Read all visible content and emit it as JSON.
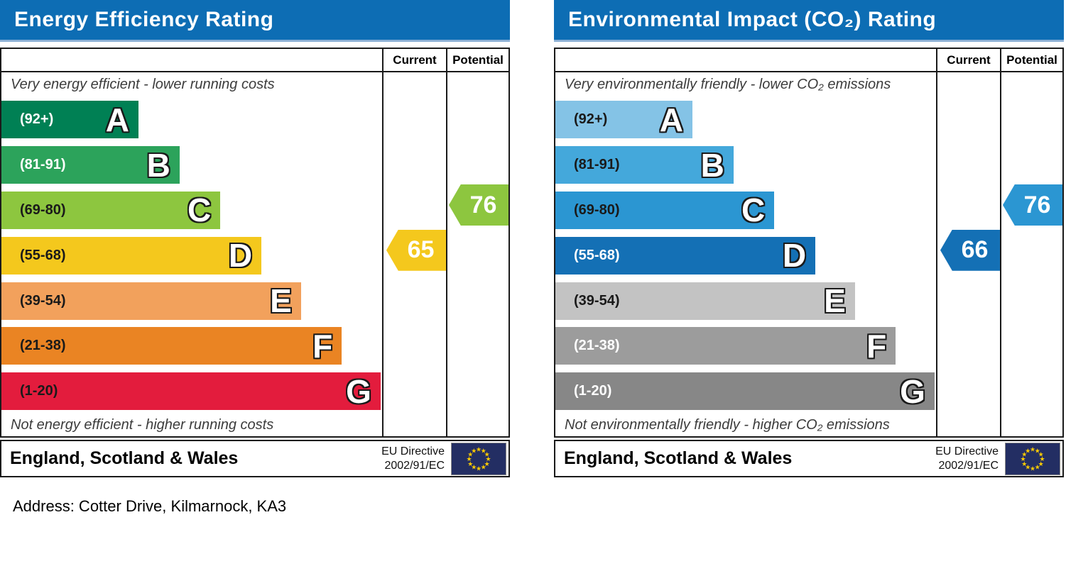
{
  "address": "Address: Cotter Drive, Kilmarnock, KA3",
  "icons": {
    "eu_flag": "eu-flag-icon: navy rectangle with circle of 12 yellow stars"
  },
  "colors": {
    "header_blue": "#0d6db4",
    "flag_navy": "#232e63",
    "flag_star_yellow": "#ffcc00"
  },
  "chart_data": [
    {
      "type": "bar",
      "title": "Energy Efficiency Rating",
      "columns": {
        "current": "Current",
        "potential": "Potential"
      },
      "top_caption": "Very energy efficient - lower running costs",
      "bottom_caption": "Not energy efficient - higher running costs",
      "bands": [
        {
          "letter": "A",
          "range": "(92+)",
          "color": "#008054",
          "width_pct": 36.0,
          "label_color": "#ffffff"
        },
        {
          "letter": "B",
          "range": "(81-91)",
          "color": "#2ca35b",
          "width_pct": 46.8,
          "label_color": "#ffffff"
        },
        {
          "letter": "C",
          "range": "(69-80)",
          "color": "#8dc63f",
          "width_pct": 57.5,
          "label_color": "#1a1a1a"
        },
        {
          "letter": "D",
          "range": "(55-68)",
          "color": "#f4c81d",
          "width_pct": 68.3,
          "label_color": "#1a1a1a"
        },
        {
          "letter": "E",
          "range": "(39-54)",
          "color": "#f2a15c",
          "width_pct": 78.7,
          "label_color": "#1a1a1a"
        },
        {
          "letter": "F",
          "range": "(21-38)",
          "color": "#ea8423",
          "width_pct": 89.4,
          "label_color": "#1a1a1a"
        },
        {
          "letter": "G",
          "range": "(1-20)",
          "color": "#e31c3d",
          "width_pct": 99.6,
          "label_color": "#1a1a1a"
        }
      ],
      "current": {
        "value": 65,
        "band": "D",
        "band_index": 3,
        "color": "#f4c81d"
      },
      "potential": {
        "value": 76,
        "band": "C",
        "band_index": 2,
        "color": "#8dc63f"
      },
      "footer_region": "England, Scotland & Wales",
      "eu_directive": {
        "line1": "EU Directive",
        "line2": "2002/91/EC"
      }
    },
    {
      "type": "bar",
      "title": "Environmental Impact (CO₂) Rating",
      "columns": {
        "current": "Current",
        "potential": "Potential"
      },
      "top_caption": "Very environmentally friendly - lower CO₂ emissions",
      "bottom_caption": "Not environmentally friendly - higher CO₂ emissions",
      "bands": [
        {
          "letter": "A",
          "range": "(92+)",
          "color": "#84c3e6",
          "width_pct": 36.0,
          "label_color": "#1a1a1a"
        },
        {
          "letter": "B",
          "range": "(81-91)",
          "color": "#44a8db",
          "width_pct": 46.8,
          "label_color": "#1a1a1a"
        },
        {
          "letter": "C",
          "range": "(69-80)",
          "color": "#2b96d2",
          "width_pct": 57.5,
          "label_color": "#1a1a1a"
        },
        {
          "letter": "D",
          "range": "(55-68)",
          "color": "#1470b5",
          "width_pct": 68.3,
          "label_color": "#ffffff"
        },
        {
          "letter": "E",
          "range": "(39-54)",
          "color": "#c3c3c3",
          "width_pct": 78.7,
          "label_color": "#1a1a1a"
        },
        {
          "letter": "F",
          "range": "(21-38)",
          "color": "#9c9c9c",
          "width_pct": 89.4,
          "label_color": "#ffffff"
        },
        {
          "letter": "G",
          "range": "(1-20)",
          "color": "#878787",
          "width_pct": 99.6,
          "label_color": "#ffffff"
        }
      ],
      "current": {
        "value": 66,
        "band": "D",
        "band_index": 3,
        "color": "#1470b5"
      },
      "potential": {
        "value": 76,
        "band": "C",
        "band_index": 2,
        "color": "#2b96d2"
      },
      "footer_region": "England, Scotland & Wales",
      "eu_directive": {
        "line1": "EU Directive",
        "line2": "2002/91/EC"
      }
    }
  ]
}
